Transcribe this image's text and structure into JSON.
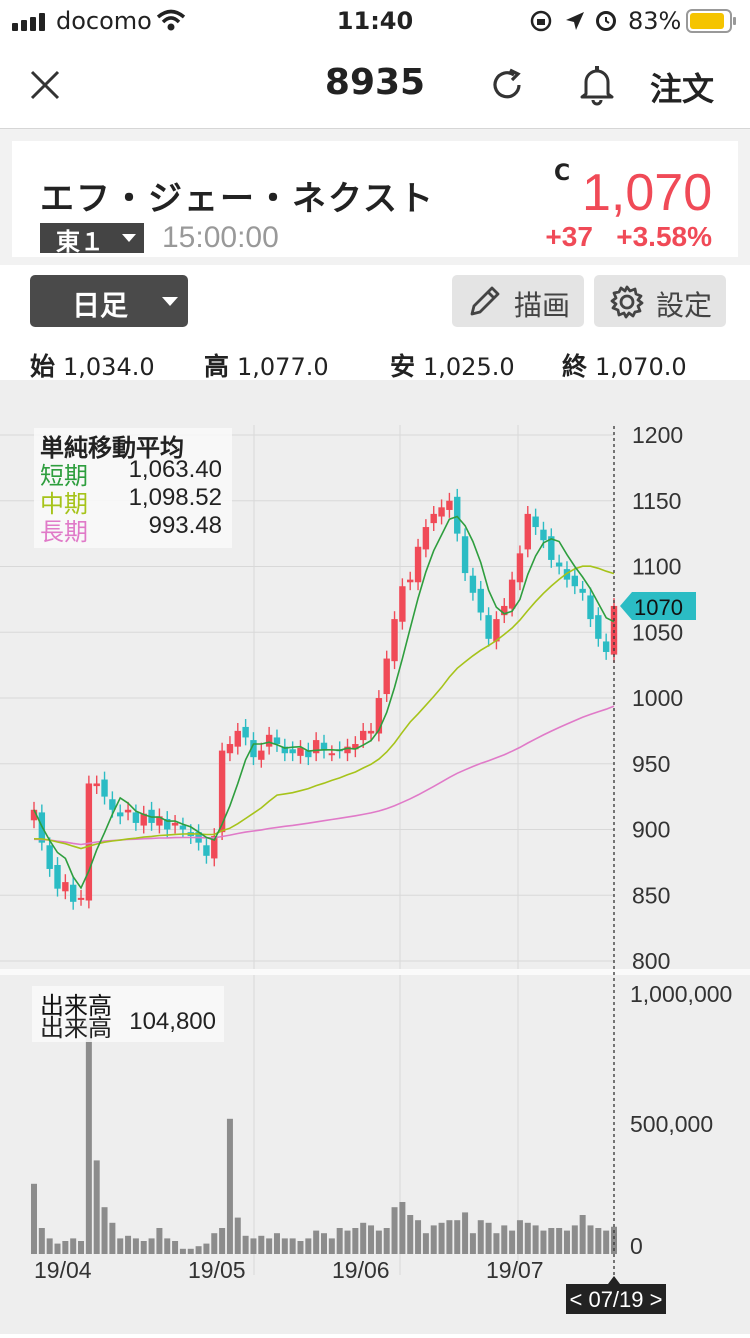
{
  "status_bar": {
    "carrier": "docomo",
    "time": "11:40",
    "battery": "83%"
  },
  "header": {
    "code": "8935",
    "order_label": "注文"
  },
  "quote": {
    "name": "エフ・ジェー・ネクスト",
    "close_mark": "C",
    "price": "1,070",
    "exchange": "東１",
    "time": "15:00:00",
    "change": "+37",
    "change_pct": "+3.58%",
    "color_up": "#f04a57"
  },
  "controls": {
    "period": "日足",
    "draw_label": "描画",
    "settings_label": "設定"
  },
  "ohlc": {
    "open_label": "始",
    "open": "1,034.0",
    "high_label": "高",
    "high": "1,077.0",
    "low_label": "安",
    "low": "1,025.0",
    "close_label": "終",
    "close": "1,070.0"
  },
  "chart_data": {
    "type": "candlestick",
    "price_axis": {
      "ticks": [
        "1200",
        "1150",
        "1100",
        "1050",
        "1000",
        "950",
        "900",
        "850",
        "800"
      ]
    },
    "volume_axis": {
      "ticks": [
        "1,000,000",
        "500,000",
        "0"
      ]
    },
    "x_ticks": [
      "19/04",
      "19/05",
      "19/06",
      "19/07"
    ],
    "current_price_tag": "1070",
    "cursor_date": "< 07/19 >",
    "ma_legend": {
      "title": "単純移動平均",
      "items": [
        {
          "name": "短期",
          "value": "1,063.40",
          "color": "#2e9e3e"
        },
        {
          "name": "中期",
          "value": "1,098.52",
          "color": "#a6c31a"
        },
        {
          "name": "長期",
          "value": "993.48",
          "color": "#e07ac8"
        }
      ]
    },
    "volume_legend": {
      "title": "出来高",
      "name": "出来高",
      "value": "104,800"
    },
    "colors": {
      "up": "#f04a57",
      "down": "#2bbcc4",
      "volume": "#8c8c8c"
    },
    "ylim": [
      800,
      1200
    ],
    "vlim": [
      0,
      1000000
    ],
    "close": [
      915,
      890,
      870,
      855,
      860,
      845,
      848,
      935,
      935,
      925,
      915,
      910,
      915,
      905,
      912,
      905,
      910,
      900,
      905,
      900,
      895,
      890,
      880,
      895,
      960,
      965,
      975,
      970,
      955,
      960,
      972,
      965,
      958,
      958,
      962,
      955,
      968,
      960,
      958,
      960,
      963,
      965,
      975,
      975,
      1000,
      1030,
      1060,
      1085,
      1090,
      1115,
      1130,
      1140,
      1145,
      1150,
      1125,
      1095,
      1080,
      1065,
      1045,
      1060,
      1070,
      1090,
      1110,
      1140,
      1130,
      1120,
      1105,
      1100,
      1090,
      1085,
      1080,
      1060,
      1045,
      1035,
      1070
    ],
    "volume": [
      270000,
      100000,
      60000,
      40000,
      50000,
      60000,
      50000,
      900000,
      360000,
      180000,
      120000,
      60000,
      70000,
      60000,
      50000,
      60000,
      100000,
      60000,
      50000,
      20000,
      20000,
      30000,
      40000,
      80000,
      100000,
      520000,
      140000,
      70000,
      60000,
      70000,
      60000,
      80000,
      60000,
      60000,
      50000,
      60000,
      90000,
      80000,
      60000,
      100000,
      90000,
      100000,
      120000,
      110000,
      90000,
      100000,
      180000,
      200000,
      150000,
      130000,
      80000,
      110000,
      120000,
      130000,
      130000,
      160000,
      80000,
      130000,
      120000,
      80000,
      110000,
      90000,
      130000,
      120000,
      110000,
      90000,
      100000,
      100000,
      90000,
      110000,
      150000,
      110000,
      100000,
      90000,
      104800
    ]
  }
}
